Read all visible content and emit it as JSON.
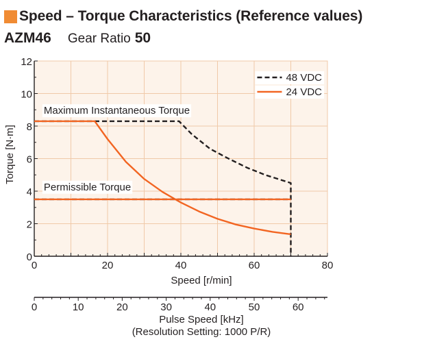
{
  "header": {
    "title": "Speed – Torque Characteristics (Reference values)",
    "model": "AZM46",
    "ratio_label": "Gear Ratio",
    "ratio_value": "50"
  },
  "colors": {
    "accent": "#f08b33",
    "plot_bg": "#fdf3ea",
    "grid": "#f0c9a8",
    "series_48": "#231f20",
    "series_24": "#f26522"
  },
  "chart_data": {
    "type": "line",
    "xlabel": "Speed [r/min]",
    "ylabel": "Torque [N·m]",
    "xlim": [
      0,
      80
    ],
    "ylim": [
      0,
      12
    ],
    "x_ticks": [
      0,
      20,
      40,
      60,
      80
    ],
    "y_ticks": [
      0,
      2,
      4,
      6,
      8,
      10,
      12
    ],
    "grid": true,
    "legend_position": "top-right",
    "secondary_axis": {
      "label_line1": "Pulse Speed [kHz]",
      "label_line2": "(Resolution Setting: 1000 P/R)",
      "ticks": [
        0,
        10,
        20,
        30,
        40,
        50,
        60
      ],
      "speed_per_khz": 1.2
    },
    "annotations": [
      {
        "text": "Maximum Instantaneous Torque",
        "x": 2.6,
        "y": 8.75
      },
      {
        "text": "Permissible Torque",
        "x": 2.6,
        "y": 4.05
      }
    ],
    "series": [
      {
        "name": "48 VDC",
        "style": "dashed",
        "color": "#231f20",
        "points": [
          [
            0,
            8.3
          ],
          [
            39.5,
            8.3
          ],
          [
            43,
            7.5
          ],
          [
            48,
            6.6
          ],
          [
            53,
            6.0
          ],
          [
            58,
            5.45
          ],
          [
            63,
            5.0
          ],
          [
            70,
            4.5
          ],
          [
            70,
            0
          ]
        ]
      },
      {
        "name": "24 VDC",
        "style": "solid",
        "color": "#f26522",
        "points": [
          [
            0,
            8.3
          ],
          [
            16.5,
            8.3
          ],
          [
            20,
            7.2
          ],
          [
            25,
            5.8
          ],
          [
            30,
            4.75
          ],
          [
            35,
            3.95
          ],
          [
            40,
            3.3
          ],
          [
            45,
            2.75
          ],
          [
            50,
            2.3
          ],
          [
            55,
            1.95
          ],
          [
            60,
            1.7
          ],
          [
            65,
            1.5
          ],
          [
            70,
            1.35
          ]
        ]
      },
      {
        "name": "Permissible Torque (48 VDC)",
        "style": "dashed",
        "color": "#231f20",
        "points": [
          [
            0,
            3.5
          ],
          [
            70,
            3.5
          ]
        ]
      },
      {
        "name": "Permissible Torque (24 VDC)",
        "style": "solid",
        "color": "#f26522",
        "points": [
          [
            0,
            3.5
          ],
          [
            70,
            3.5
          ]
        ]
      }
    ]
  }
}
